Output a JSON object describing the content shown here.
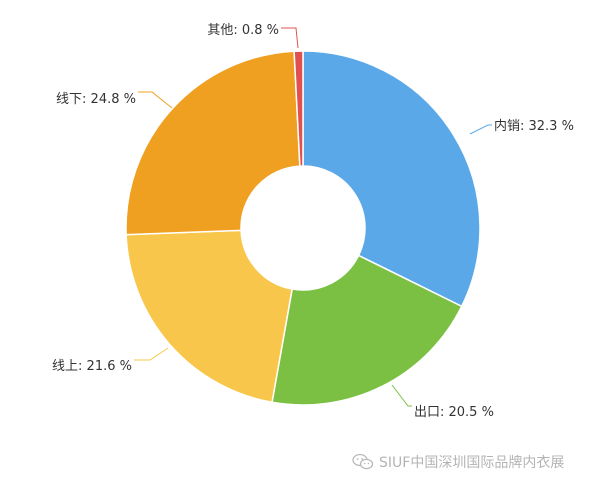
{
  "chart_data": {
    "type": "pie",
    "variant": "donut",
    "unit": "%",
    "slices": [
      {
        "name": "内销",
        "value": 32.3,
        "label": "内销: 32.3 %",
        "color": "#5aa8e8"
      },
      {
        "name": "出口",
        "value": 20.5,
        "label": "出口: 20.5 %",
        "color": "#7bc043"
      },
      {
        "name": "线上",
        "value": 21.6,
        "label": "线上: 21.6 %",
        "color": "#f8c64b"
      },
      {
        "name": "线下",
        "value": 24.8,
        "label": "线下: 24.8 %",
        "color": "#f0a020"
      },
      {
        "name": "其他",
        "value": 0.8,
        "label": "其他: 0.8 %",
        "color": "#e05050"
      }
    ]
  },
  "watermark": {
    "text": "SIUF中国深圳国际品牌内衣展",
    "icon": "wechat-icon"
  }
}
